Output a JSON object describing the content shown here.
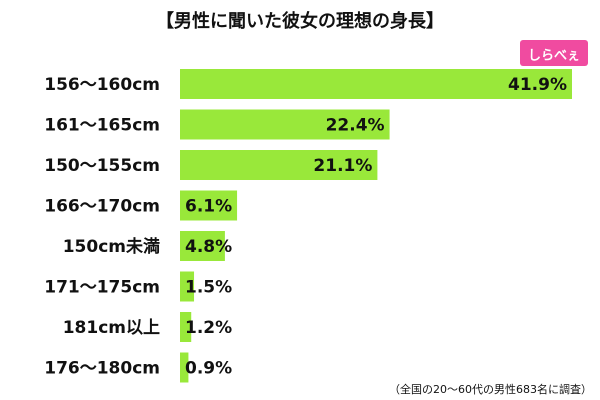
{
  "chart_data": {
    "type": "bar",
    "orientation": "horizontal",
    "title": "【男性に聞いた彼女の理想の身長】",
    "logo": "しらべぇ",
    "note": "（全国の20～60代の男性683名に調査）",
    "categories": [
      "156～160cm",
      "161～165cm",
      "150～155cm",
      "166～170cm",
      "150cm未満",
      "171～175cm",
      "181cm以上",
      "176～180cm"
    ],
    "values": [
      41.9,
      22.4,
      21.1,
      6.1,
      4.8,
      1.5,
      1.2,
      0.9
    ],
    "value_labels": [
      "41.9%",
      "22.4%",
      "21.1%",
      "6.1%",
      "4.8%",
      "1.5%",
      "1.2%",
      "0.9%"
    ],
    "color": "#99e83a"
  }
}
